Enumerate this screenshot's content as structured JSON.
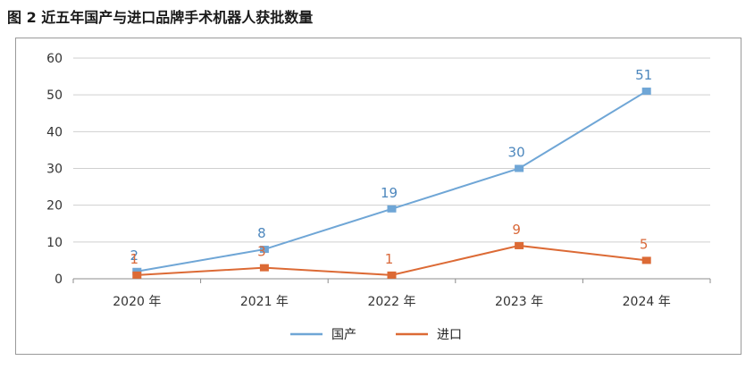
{
  "title": "图 2   近五年国产与进口品牌手术机器人获批数量",
  "chart_data": {
    "type": "line",
    "title": "图 2   近五年国产与进口品牌手术机器人获批数量",
    "categories": [
      "2020 年",
      "2021 年",
      "2022 年",
      "2023 年",
      "2024 年"
    ],
    "ylim": [
      0,
      60
    ],
    "yticks": [
      0,
      10,
      20,
      30,
      40,
      50,
      60
    ],
    "grid": true,
    "legend_position": "bottom",
    "series": [
      {
        "name": "国产",
        "color": "#6fa6d6",
        "label_color": "#4d87bd",
        "values": [
          2,
          8,
          19,
          30,
          51
        ]
      },
      {
        "name": "进口",
        "color": "#dc6a35",
        "label_color": "#d9693a",
        "values": [
          1,
          3,
          1,
          9,
          5
        ]
      }
    ]
  }
}
